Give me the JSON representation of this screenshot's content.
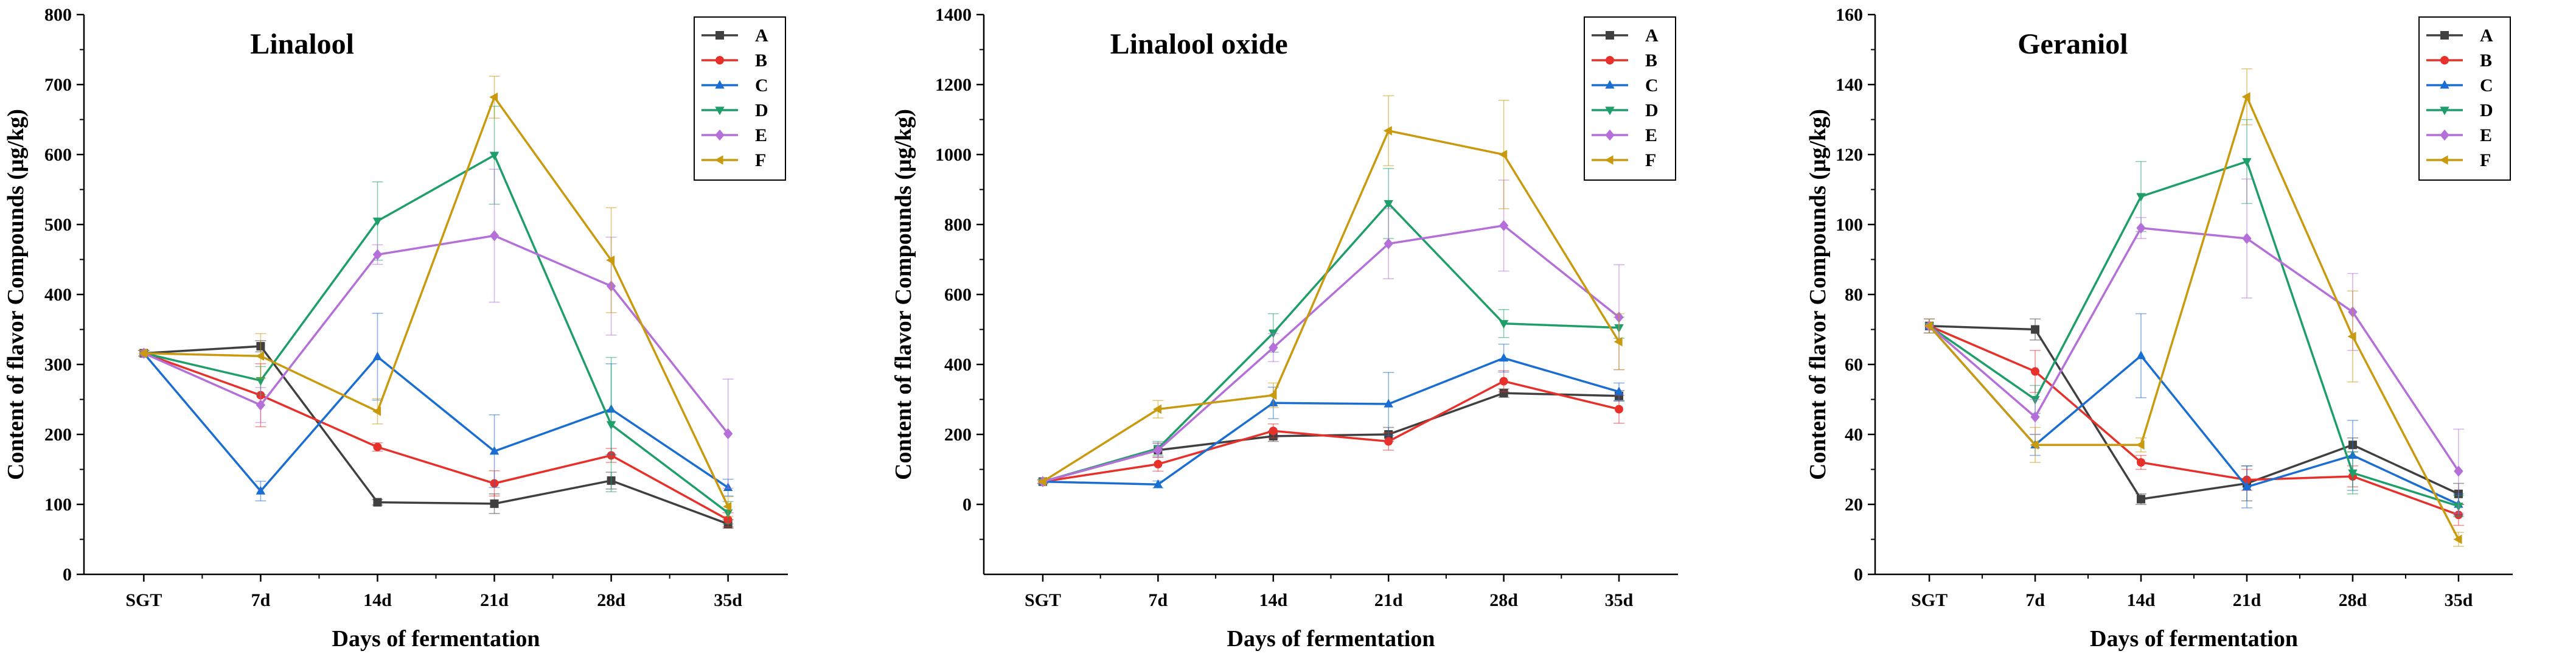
{
  "chart_data": [
    {
      "type": "line",
      "title": "Linalool",
      "xlabel": "Days of fermentation",
      "ylabel": "Content of flavor Compounds (μg/kg)",
      "categories": [
        "SGT",
        "7d",
        "14d",
        "21d",
        "28d",
        "35d"
      ],
      "ylim": [
        0,
        800
      ],
      "yticks": [
        0,
        100,
        200,
        300,
        400,
        500,
        600,
        700,
        800
      ],
      "legend_position": "top-right",
      "series": [
        {
          "name": "A",
          "color": "#404040",
          "marker": "square",
          "values": [
            316,
            326,
            103,
            101,
            134,
            72
          ],
          "errors": [
            4,
            8,
            4,
            14,
            12,
            6
          ]
        },
        {
          "name": "B",
          "color": "#e8302a",
          "marker": "circle",
          "values": [
            316,
            256,
            182,
            130,
            170,
            78
          ],
          "errors": [
            4,
            45,
            6,
            18,
            10,
            10
          ]
        },
        {
          "name": "C",
          "color": "#1b6ed1",
          "marker": "triangle-up",
          "values": [
            316,
            119,
            311,
            176,
            236,
            124
          ],
          "errors": [
            4,
            14,
            62,
            52,
            65,
            12
          ]
        },
        {
          "name": "D",
          "color": "#1e9e68",
          "marker": "triangle-down",
          "values": [
            316,
            277,
            505,
            599,
            214,
            88
          ],
          "errors": [
            4,
            20,
            56,
            70,
            96,
            16
          ]
        },
        {
          "name": "E",
          "color": "#b46fd9",
          "marker": "diamond",
          "values": [
            316,
            242,
            457,
            484,
            412,
            201
          ],
          "errors": [
            4,
            25,
            14,
            95,
            70,
            78
          ]
        },
        {
          "name": "F",
          "color": "#c9990e",
          "marker": "triangle-left",
          "values": [
            316,
            312,
            233,
            682,
            449,
            97
          ],
          "errors": [
            4,
            32,
            18,
            30,
            75,
            14
          ]
        }
      ]
    },
    {
      "type": "line",
      "title": "Linalool oxide",
      "xlabel": "Days of fermentation",
      "ylabel": "Content of flavor Compounds (μg/kg)",
      "categories": [
        "SGT",
        "7d",
        "14d",
        "21d",
        "28d",
        "35d"
      ],
      "ylim": [
        -200,
        1400
      ],
      "yticks": [
        0,
        200,
        400,
        600,
        800,
        1000,
        1200,
        1400
      ],
      "legend_position": "top-right",
      "series": [
        {
          "name": "A",
          "color": "#404040",
          "marker": "square",
          "values": [
            65,
            155,
            195,
            200,
            318,
            310
          ],
          "errors": [
            5,
            20,
            15,
            20,
            12,
            15
          ]
        },
        {
          "name": "B",
          "color": "#e8302a",
          "marker": "circle",
          "values": [
            65,
            115,
            210,
            180,
            352,
            272
          ],
          "errors": [
            5,
            20,
            20,
            25,
            30,
            40
          ]
        },
        {
          "name": "C",
          "color": "#1b6ed1",
          "marker": "triangle-up",
          "values": [
            65,
            57,
            290,
            287,
            418,
            322
          ],
          "errors": [
            5,
            10,
            45,
            90,
            40,
            25
          ]
        },
        {
          "name": "D",
          "color": "#1e9e68",
          "marker": "triangle-down",
          "values": [
            65,
            160,
            490,
            860,
            517,
            505
          ],
          "errors": [
            5,
            20,
            55,
            100,
            40,
            30
          ]
        },
        {
          "name": "E",
          "color": "#b46fd9",
          "marker": "diamond",
          "values": [
            65,
            155,
            448,
            745,
            797,
            535
          ],
          "errors": [
            5,
            20,
            40,
            100,
            130,
            150
          ]
        },
        {
          "name": "F",
          "color": "#c9990e",
          "marker": "triangle-left",
          "values": [
            65,
            272,
            312,
            1068,
            1000,
            465
          ],
          "errors": [
            5,
            25,
            35,
            100,
            155,
            80
          ]
        }
      ]
    },
    {
      "type": "line",
      "title": "Geraniol",
      "xlabel": "Days of fermentation",
      "ylabel": "Content of flavor Compounds (μg/kg)",
      "categories": [
        "SGT",
        "7d",
        "14d",
        "21d",
        "28d",
        "35d"
      ],
      "ylim": [
        0,
        160
      ],
      "yticks": [
        0,
        20,
        40,
        60,
        80,
        100,
        120,
        140,
        160
      ],
      "legend_position": "top-right",
      "series": [
        {
          "name": "A",
          "color": "#404040",
          "marker": "square",
          "values": [
            71,
            70,
            21.5,
            26,
            37,
            23
          ],
          "errors": [
            2,
            3,
            1.5,
            5,
            2,
            3
          ]
        },
        {
          "name": "B",
          "color": "#e8302a",
          "marker": "circle",
          "values": [
            71,
            58,
            32,
            27,
            28,
            17
          ],
          "errors": [
            2,
            6,
            2,
            3,
            3,
            3
          ]
        },
        {
          "name": "C",
          "color": "#1b6ed1",
          "marker": "triangle-up",
          "values": [
            71,
            37,
            62.5,
            25,
            34,
            20
          ],
          "errors": [
            2,
            3,
            12,
            6,
            10,
            3
          ]
        },
        {
          "name": "D",
          "color": "#1e9e68",
          "marker": "triangle-down",
          "values": [
            71,
            50,
            108,
            118,
            29,
            19.5
          ],
          "errors": [
            2,
            4,
            10,
            12,
            6,
            3
          ]
        },
        {
          "name": "E",
          "color": "#b46fd9",
          "marker": "diamond",
          "values": [
            71,
            45,
            99,
            96,
            75,
            29.5
          ],
          "errors": [
            2,
            5,
            3,
            17,
            11,
            12
          ]
        },
        {
          "name": "F",
          "color": "#c9990e",
          "marker": "triangle-left",
          "values": [
            71,
            37,
            37,
            136.5,
            68,
            10
          ],
          "errors": [
            2,
            5,
            2,
            8,
            13,
            2
          ]
        }
      ]
    }
  ]
}
